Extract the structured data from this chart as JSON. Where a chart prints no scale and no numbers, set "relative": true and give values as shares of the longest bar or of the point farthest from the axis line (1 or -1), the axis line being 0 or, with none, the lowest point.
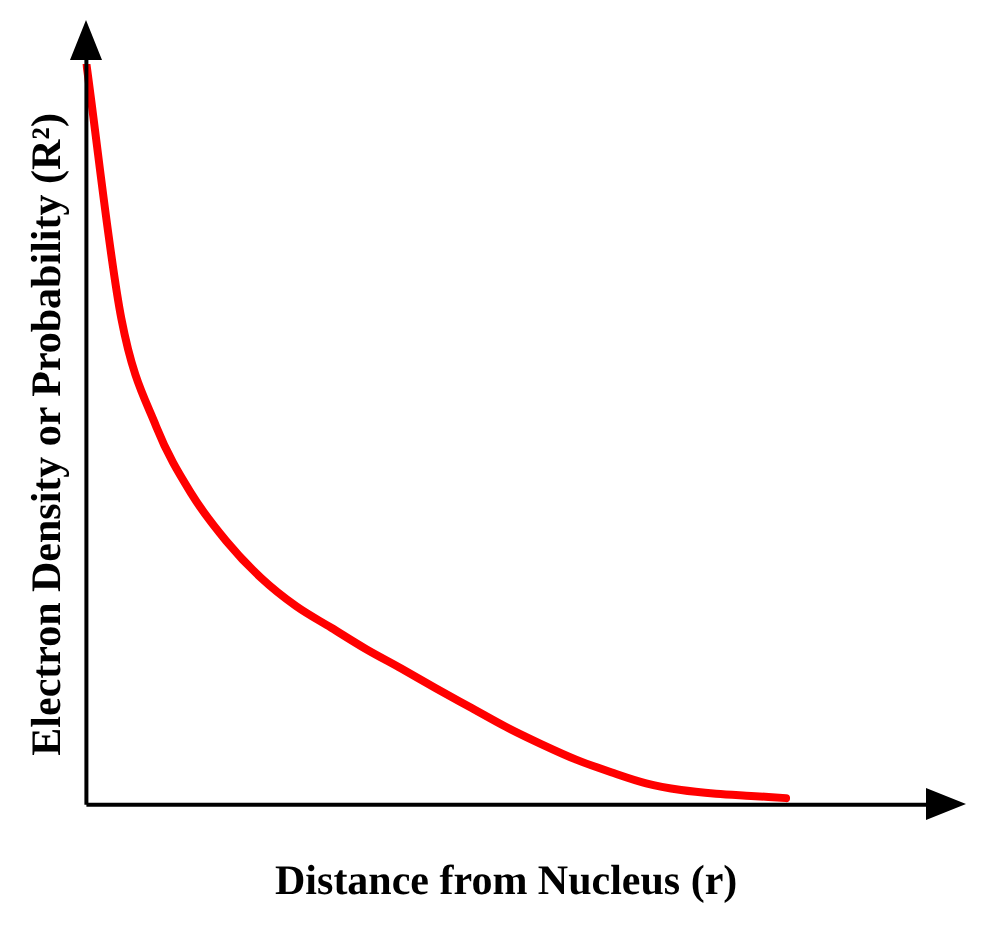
{
  "chart_data": {
    "type": "line",
    "relative": true,
    "xlabel": "Distance from Nucleus (r)",
    "ylabel": "Electron Density or Probability (R²)",
    "categories": [
      null,
      null,
      null,
      null,
      null,
      null,
      null,
      null,
      null,
      null,
      null,
      null,
      null,
      null,
      null,
      null,
      null,
      null,
      null,
      null,
      null,
      null,
      null,
      null,
      null
    ],
    "series": [
      {
        "color": "#ff0000",
        "values": [
          1.0,
          0.656,
          0.51,
          0.42,
          0.356,
          0.306,
          0.268,
          0.239,
          0.21,
          0.184,
          0.157,
          0.131,
          0.105,
          0.082,
          0.061,
          0.044,
          0.029,
          0.02,
          0.015,
          0.012,
          0.009,
          null,
          null,
          null,
          null
        ]
      }
    ],
    "grid": false,
    "legend": false,
    "marker": "none",
    "line_style": "solid"
  }
}
